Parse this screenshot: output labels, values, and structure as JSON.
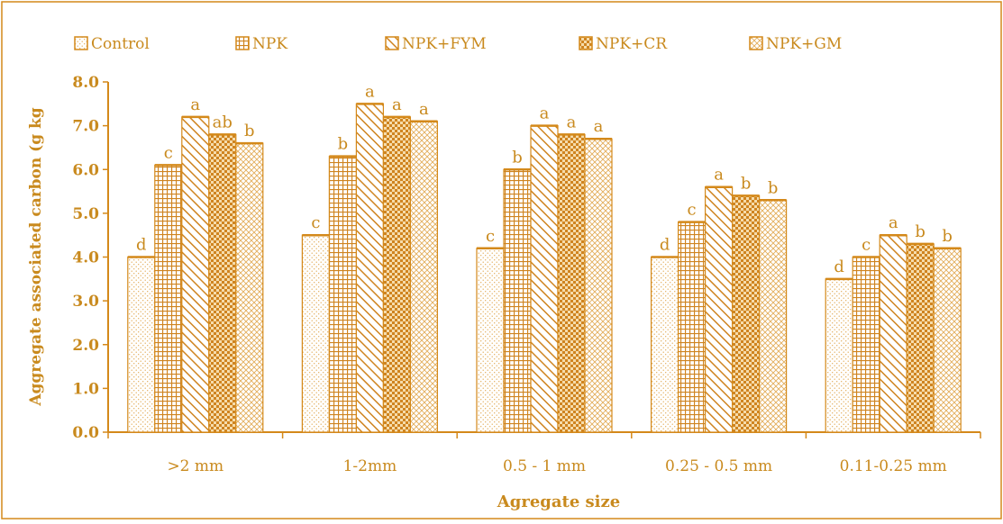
{
  "chart_data": {
    "type": "bar",
    "title": "",
    "xlabel": "Agregate size",
    "ylabel": "Aggregate associated carbon (g kg",
    "ylim": [
      0,
      8
    ],
    "y_ticks": [
      "0.0",
      "1.0",
      "2.0",
      "3.0",
      "4.0",
      "5.0",
      "6.0",
      "7.0",
      "8.0"
    ],
    "grid": false,
    "legend_position": "top",
    "categories": [
      ">2 mm",
      "1-2mm",
      "0.5  - 1  mm",
      "0.25  - 0.5 mm",
      "0.11-0.25 mm"
    ],
    "series": [
      {
        "name": "Control",
        "values": [
          4.0,
          4.5,
          4.2,
          4.0,
          3.5
        ],
        "labels": [
          "d",
          "c",
          "c",
          "d",
          "d"
        ]
      },
      {
        "name": "NPK",
        "values": [
          6.1,
          6.3,
          6.0,
          4.8,
          4.0
        ],
        "labels": [
          "c",
          "b",
          "b",
          "c",
          "c"
        ]
      },
      {
        "name": "NPK+FYM",
        "values": [
          7.2,
          7.5,
          7.0,
          5.6,
          4.5
        ],
        "labels": [
          "a",
          "a",
          "a",
          "a",
          "a"
        ]
      },
      {
        "name": "NPK+CR",
        "values": [
          6.8,
          7.2,
          6.8,
          5.4,
          4.3
        ],
        "labels": [
          "ab",
          "a",
          "a",
          "b",
          "b"
        ]
      },
      {
        "name": "NPK+GM",
        "values": [
          6.6,
          7.1,
          6.7,
          5.3,
          4.2
        ],
        "labels": [
          "b",
          "a",
          "a",
          "b",
          "b"
        ]
      }
    ],
    "colors": {
      "accent": "#d4891a",
      "text": "#c98a1e",
      "bar_fill": "#ffffff"
    }
  }
}
